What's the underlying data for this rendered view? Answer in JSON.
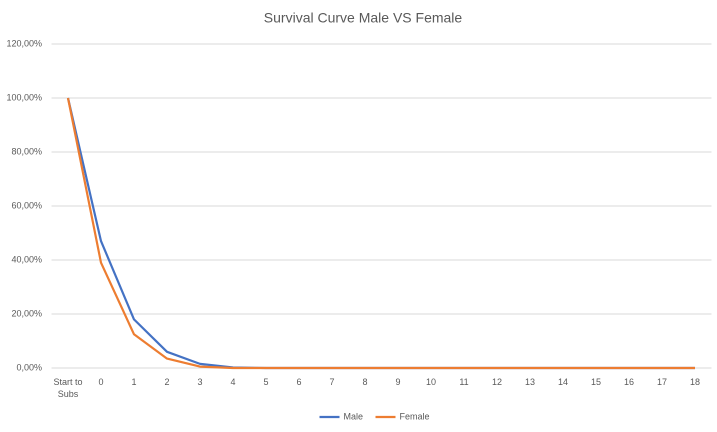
{
  "chart_data": {
    "type": "line",
    "title": "Survival Curve Male VS Female",
    "categories": [
      "Start to Subs",
      "0",
      "1",
      "2",
      "3",
      "4",
      "5",
      "6",
      "7",
      "8",
      "9",
      "10",
      "11",
      "12",
      "13",
      "14",
      "15",
      "16",
      "17",
      "18"
    ],
    "series": [
      {
        "name": "Male",
        "color": "#4472c4",
        "values": [
          100,
          47,
          18,
          6,
          1.5,
          0.2,
          0,
          0,
          0,
          0,
          0,
          0,
          0,
          0,
          0,
          0,
          0,
          0,
          0,
          0
        ]
      },
      {
        "name": "Female",
        "color": "#ed7d31",
        "values": [
          100,
          39,
          12.5,
          3.5,
          0.5,
          0,
          0,
          0,
          0,
          0,
          0,
          0,
          0,
          0,
          0,
          0,
          0,
          0,
          0,
          0
        ]
      }
    ],
    "ylim": [
      0,
      120
    ],
    "yticks": [
      {
        "value": 0,
        "label": "0,00%"
      },
      {
        "value": 20,
        "label": "20,00%"
      },
      {
        "value": 40,
        "label": "40,00%"
      },
      {
        "value": 60,
        "label": "60,00%"
      },
      {
        "value": 80,
        "label": "80,00%"
      },
      {
        "value": 100,
        "label": "100,00%"
      },
      {
        "value": 120,
        "label": "120,00%"
      }
    ],
    "grid": true,
    "legend": "bottom"
  }
}
